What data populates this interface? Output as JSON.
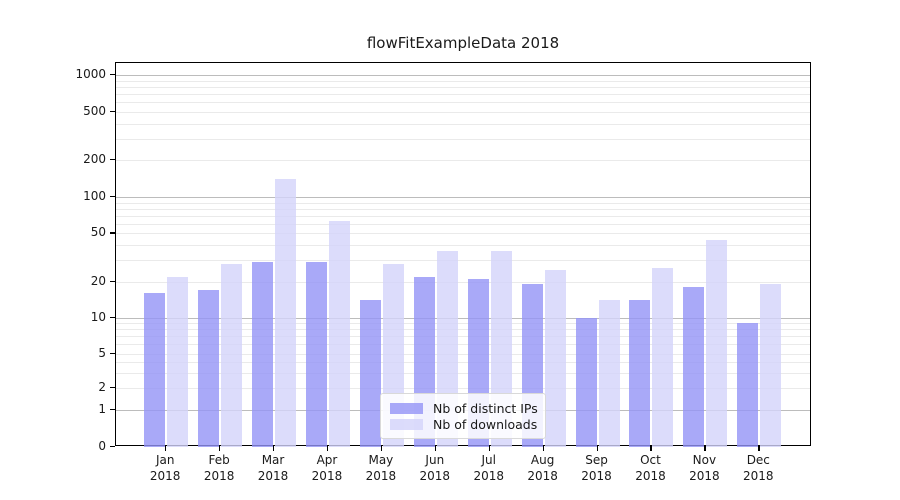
{
  "title": "flowFitExampleData 2018",
  "chart_data": {
    "type": "bar",
    "categories": [
      "Jan",
      "Feb",
      "Mar",
      "Apr",
      "May",
      "Jun",
      "Jul",
      "Aug",
      "Sep",
      "Oct",
      "Nov",
      "Dec"
    ],
    "year_label": "2018",
    "series": [
      {
        "name": "Nb of distinct IPs",
        "color": "rgba(148,148,246,0.8)",
        "values": [
          16,
          17,
          29,
          29,
          14,
          22,
          21,
          19,
          10,
          14,
          18,
          9
        ]
      },
      {
        "name": "Nb of downloads",
        "color": "rgba(211,211,250,0.8)",
        "values": [
          22,
          28,
          140,
          63,
          28,
          36,
          36,
          25,
          14,
          26,
          44,
          19
        ]
      }
    ],
    "title": "flowFitExampleData 2018",
    "xlabel": "",
    "ylabel": "",
    "yscale": "log above 1, linear 0-1",
    "ytick_labels": [
      0,
      1,
      2,
      5,
      10,
      20,
      50,
      100,
      200,
      500,
      1000
    ],
    "ylim": [
      0,
      1400
    ],
    "grid": true,
    "legend_position": "lower center inside"
  },
  "colors": {
    "bar_distinct_ips": "rgba(148,148,246,0.8)",
    "bar_downloads": "rgba(211,211,250,0.8)",
    "grid_major": "#bcbcbc",
    "grid_minor": "#eaeaea",
    "axis_frame": "#000000",
    "text": "#1a1a1a",
    "legend_background": "rgba(255,255,255,0.85)"
  }
}
